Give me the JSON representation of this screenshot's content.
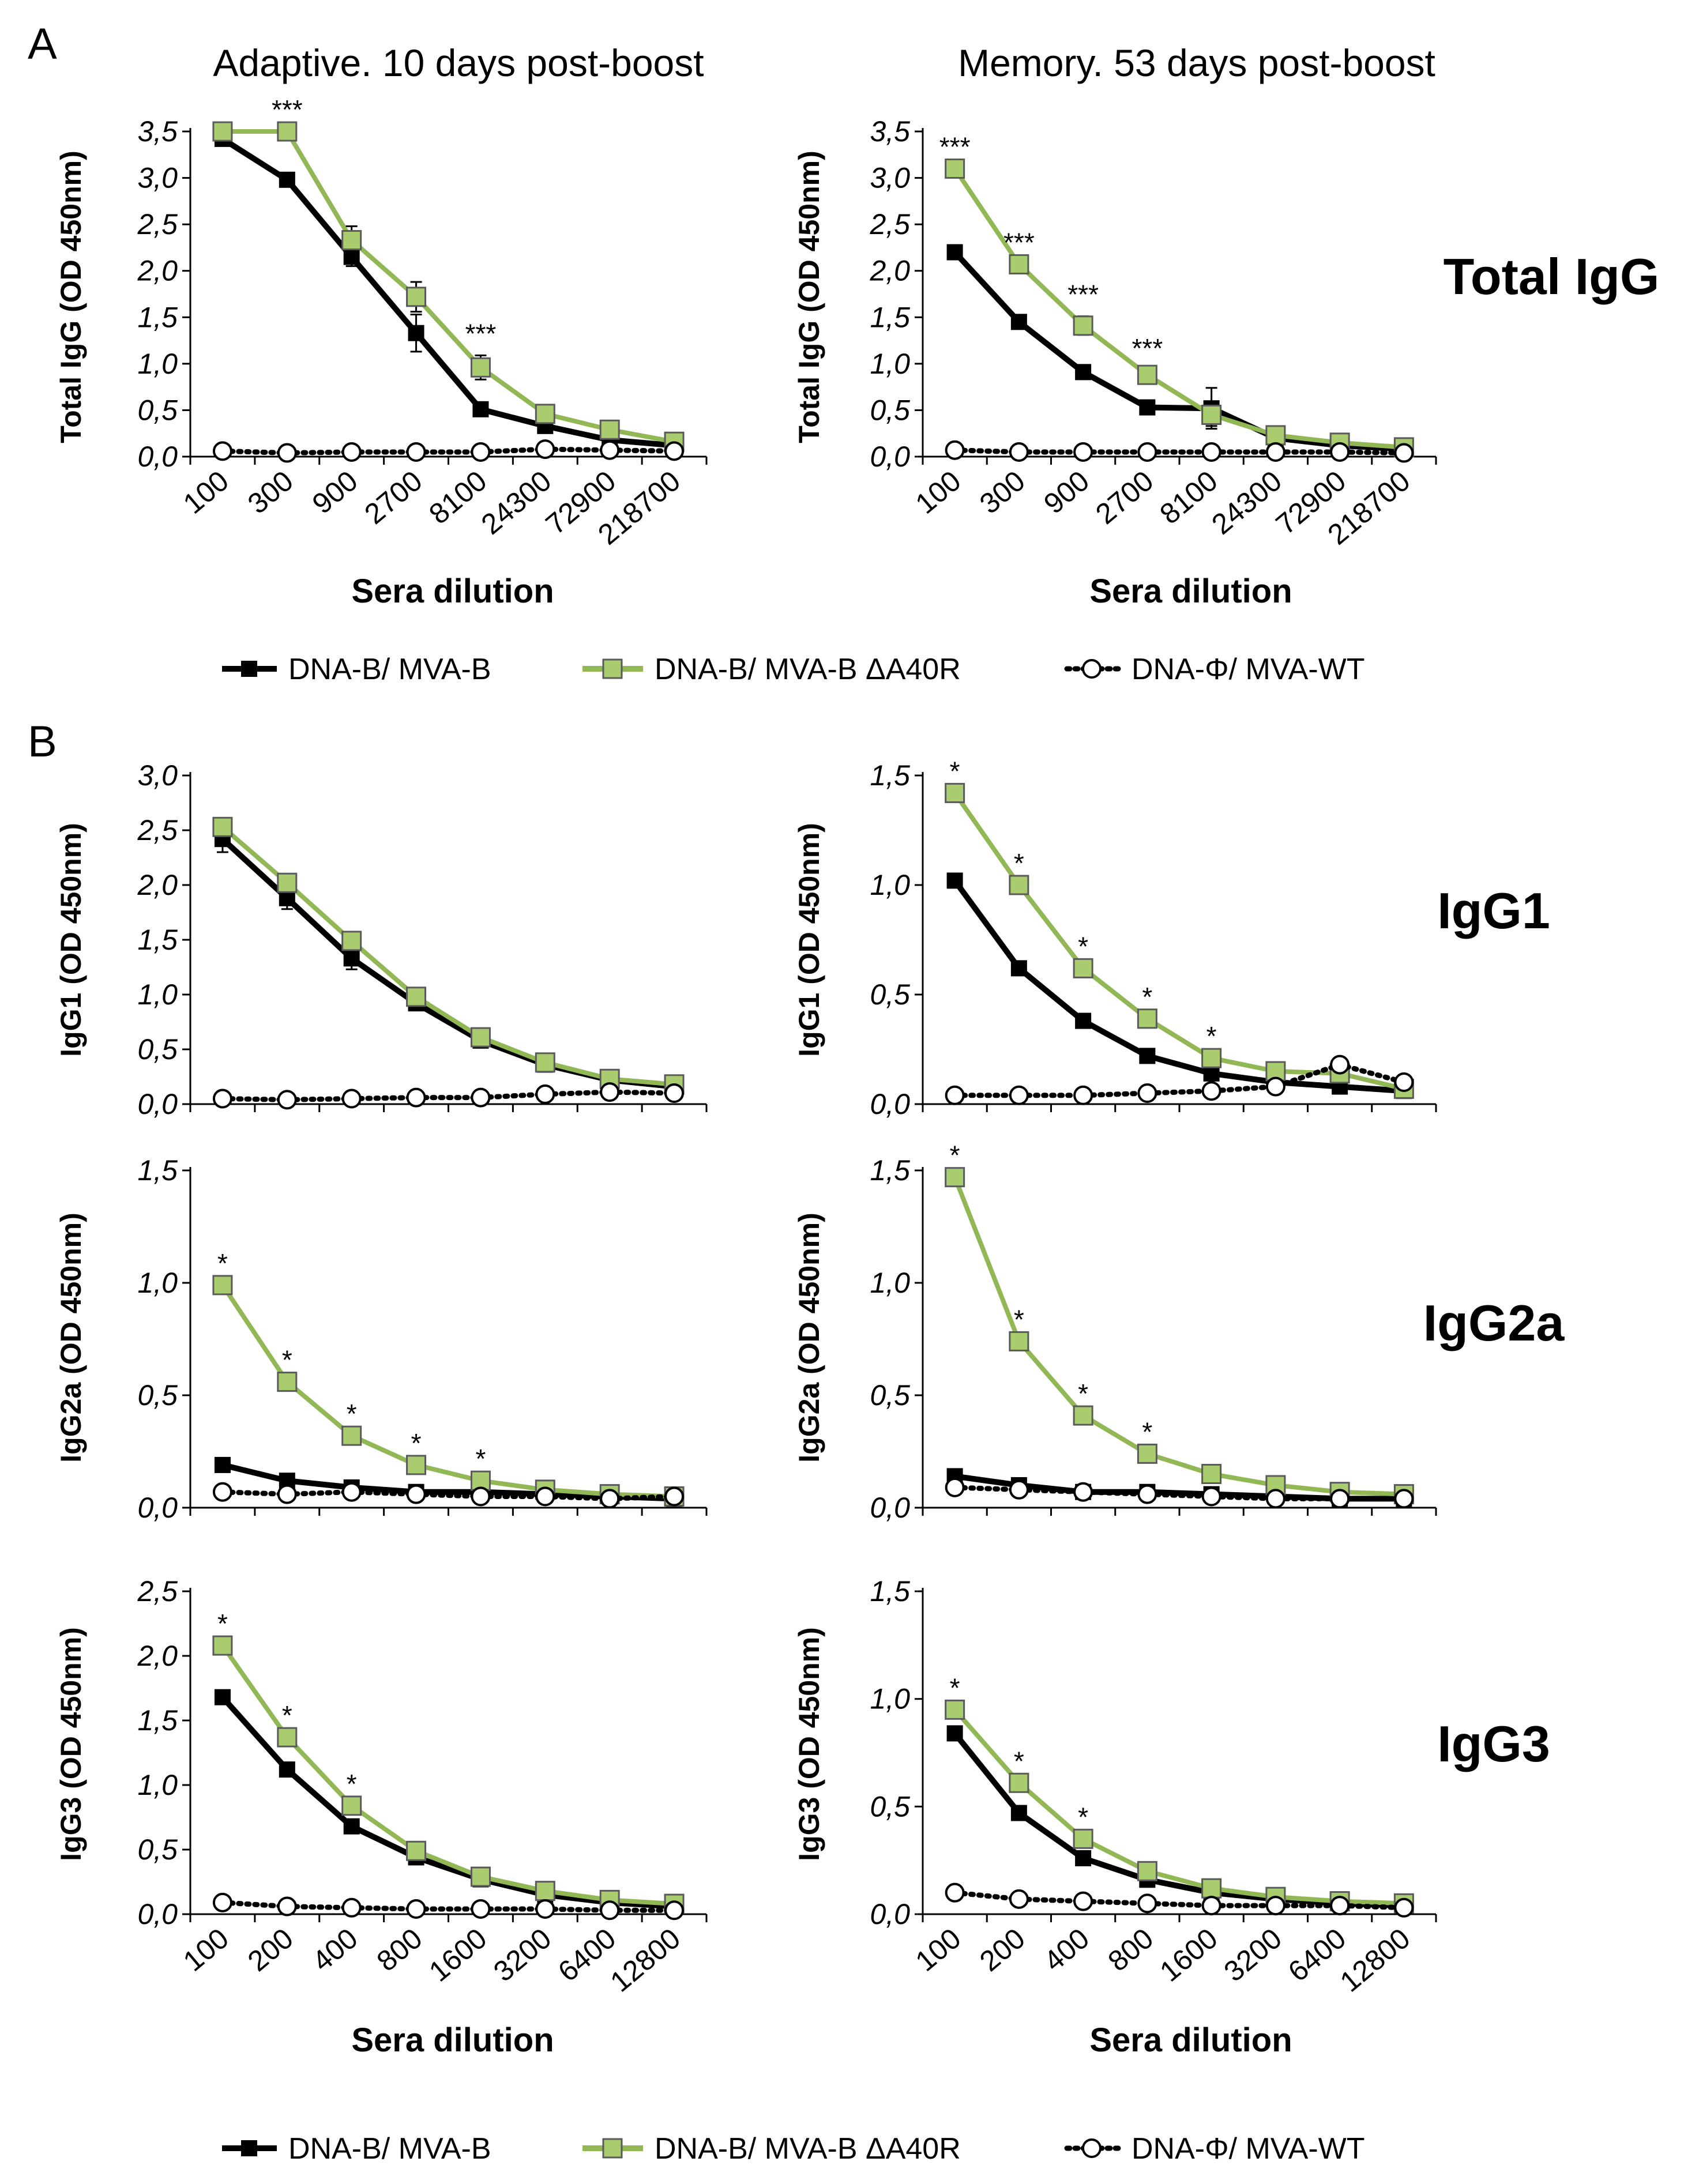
{
  "panel_labels": {
    "a": "A",
    "b": "B"
  },
  "titles": {
    "adaptive": "Adaptive. 10 days post-boost",
    "memory": "Memory. 53 days post-boost"
  },
  "row_labels": {
    "total": "Total IgG",
    "igg1": "IgG1",
    "igg2a": "IgG2a",
    "igg3": "IgG3"
  },
  "axis_titles": {
    "total": "Total IgG (OD 450nm)",
    "igg1": "IgG1 (OD 450nm)",
    "igg2a": "IgG2a (OD 450nm)",
    "igg3": "IgG3 (OD 450nm)",
    "x": "Sera dilution"
  },
  "legend": {
    "mva_b": "DNA-B/ MVA-B",
    "delta": "DNA-B/ MVA-B ΔA40R",
    "wt": "DNA-Φ/ MVA-WT"
  },
  "colors": {
    "mva_b": "#000000",
    "delta": "#92b755",
    "delta_fill": "#a9cd6e",
    "wt": "#000000"
  },
  "chart_data": [
    {
      "id": "totalA",
      "type": "line",
      "row": "total",
      "categories": [
        "100",
        "300",
        "900",
        "2700",
        "8100",
        "24300",
        "72900",
        "218700"
      ],
      "ylim": [
        0,
        3.5
      ],
      "yticks": [
        "0,0",
        "0,5",
        "1,0",
        "1,5",
        "2,0",
        "2,5",
        "3,0",
        "3,5"
      ],
      "series": [
        {
          "name": "DNA-B/ MVA-B",
          "values": [
            3.42,
            2.98,
            2.15,
            1.33,
            0.51,
            0.33,
            0.18,
            0.12
          ],
          "errors": [
            0.03,
            0.03,
            0.1,
            0.2,
            0.03,
            0.03,
            0.02,
            0.02
          ]
        },
        {
          "name": "DNA-B/ MVA-B ΔA40R",
          "values": [
            3.5,
            3.5,
            2.33,
            1.72,
            0.96,
            0.46,
            0.29,
            0.16
          ],
          "errors": [
            0,
            0,
            0.15,
            0.16,
            0.13,
            0.03,
            0.03,
            0.02
          ]
        },
        {
          "name": "DNA-Φ/ MVA-WT",
          "values": [
            0.06,
            0.04,
            0.05,
            0.05,
            0.05,
            0.08,
            0.07,
            0.06
          ],
          "errors": [
            0,
            0,
            0,
            0,
            0,
            0,
            0,
            0
          ]
        }
      ],
      "annotations": [
        {
          "index": 1,
          "label": "***"
        },
        {
          "index": 4,
          "label": "***"
        }
      ]
    },
    {
      "id": "totalM",
      "type": "line",
      "row": "total",
      "categories": [
        "100",
        "300",
        "900",
        "2700",
        "8100",
        "24300",
        "72900",
        "218700"
      ],
      "ylim": [
        0,
        3.5
      ],
      "yticks": [
        "0,0",
        "0,5",
        "1,0",
        "1,5",
        "2,0",
        "2,5",
        "3,0",
        "3,5"
      ],
      "series": [
        {
          "name": "DNA-B/ MVA-B",
          "values": [
            2.2,
            1.45,
            0.91,
            0.53,
            0.52,
            0.2,
            0.12,
            0.08
          ],
          "errors": [
            0.03,
            0.03,
            0.03,
            0.03,
            0.22,
            0.02,
            0.02,
            0.02
          ]
        },
        {
          "name": "DNA-B/ MVA-B ΔA40R",
          "values": [
            3.1,
            2.07,
            1.41,
            0.88,
            0.45,
            0.23,
            0.15,
            0.1
          ],
          "errors": [
            0.03,
            0.03,
            0.1,
            0.05,
            0.12,
            0.03,
            0.03,
            0.02
          ]
        },
        {
          "name": "DNA-Φ/ MVA-WT",
          "values": [
            0.07,
            0.05,
            0.05,
            0.05,
            0.05,
            0.05,
            0.05,
            0.04
          ],
          "errors": [
            0,
            0,
            0,
            0,
            0,
            0,
            0,
            0
          ]
        }
      ],
      "annotations": [
        {
          "index": 0,
          "label": "***"
        },
        {
          "index": 1,
          "label": "***"
        },
        {
          "index": 2,
          "label": "***"
        },
        {
          "index": 3,
          "label": "***"
        }
      ]
    },
    {
      "id": "igg1A",
      "type": "line",
      "row": "igg1",
      "categories": [
        "100",
        "200",
        "400",
        "800",
        "1600",
        "3200",
        "6400",
        "12800"
      ],
      "ylim": [
        0,
        3.0
      ],
      "yticks": [
        "0,0",
        "0,5",
        "1,0",
        "1,5",
        "2,0",
        "2,5",
        "3,0"
      ],
      "series": [
        {
          "name": "DNA-B/ MVA-B",
          "values": [
            2.42,
            1.88,
            1.33,
            0.92,
            0.58,
            0.36,
            0.22,
            0.16
          ],
          "errors": [
            0.12,
            0.1,
            0.1,
            0.03,
            0.03,
            0.02,
            0.02,
            0.02
          ]
        },
        {
          "name": "DNA-B/ MVA-B ΔA40R",
          "values": [
            2.53,
            2.02,
            1.49,
            0.98,
            0.61,
            0.38,
            0.23,
            0.18
          ],
          "errors": [
            0.05,
            0.04,
            0.04,
            0.03,
            0.02,
            0.02,
            0.02,
            0.02
          ]
        },
        {
          "name": "DNA-Φ/ MVA-WT",
          "values": [
            0.05,
            0.04,
            0.05,
            0.06,
            0.06,
            0.09,
            0.11,
            0.1
          ],
          "errors": [
            0,
            0,
            0,
            0,
            0,
            0,
            0,
            0
          ]
        }
      ],
      "annotations": []
    },
    {
      "id": "igg1M",
      "type": "line",
      "row": "igg1",
      "categories": [
        "100",
        "200",
        "400",
        "800",
        "1600",
        "3200",
        "6400",
        "12800"
      ],
      "ylim": [
        0,
        1.5
      ],
      "yticks": [
        "0,0",
        "0,5",
        "1,0",
        "1,5"
      ],
      "series": [
        {
          "name": "DNA-B/ MVA-B",
          "values": [
            1.02,
            0.62,
            0.38,
            0.22,
            0.14,
            0.1,
            0.08,
            0.06
          ],
          "errors": [
            0.02,
            0.02,
            0.02,
            0.02,
            0.02,
            0.01,
            0.01,
            0.01
          ]
        },
        {
          "name": "DNA-B/ MVA-B ΔA40R",
          "values": [
            1.42,
            1.0,
            0.62,
            0.39,
            0.21,
            0.15,
            0.14,
            0.07
          ],
          "errors": [
            0.02,
            0.02,
            0.02,
            0.02,
            0.02,
            0.01,
            0.01,
            0.01
          ]
        },
        {
          "name": "DNA-Φ/ MVA-WT",
          "values": [
            0.04,
            0.04,
            0.04,
            0.05,
            0.06,
            0.08,
            0.18,
            0.1
          ],
          "errors": [
            0,
            0,
            0,
            0,
            0,
            0,
            0,
            0
          ]
        }
      ],
      "annotations": [
        {
          "index": 0,
          "label": "*"
        },
        {
          "index": 1,
          "label": "*"
        },
        {
          "index": 2,
          "label": "*"
        },
        {
          "index": 3,
          "label": "*"
        },
        {
          "index": 4,
          "label": "*"
        }
      ]
    },
    {
      "id": "igg2aA",
      "type": "line",
      "row": "igg2a",
      "categories": [
        "100",
        "200",
        "400",
        "800",
        "1600",
        "3200",
        "6400",
        "12800"
      ],
      "ylim": [
        0,
        1.5
      ],
      "yticks": [
        "0,0",
        "0,5",
        "1,0",
        "1,5"
      ],
      "series": [
        {
          "name": "DNA-B/ MVA-B",
          "values": [
            0.19,
            0.12,
            0.09,
            0.07,
            0.07,
            0.06,
            0.05,
            0.04
          ],
          "errors": [
            0.01,
            0.01,
            0.01,
            0.01,
            0.01,
            0.01,
            0.01,
            0.01
          ]
        },
        {
          "name": "DNA-B/ MVA-B ΔA40R",
          "values": [
            0.99,
            0.56,
            0.32,
            0.19,
            0.12,
            0.08,
            0.06,
            0.05
          ],
          "errors": [
            0.02,
            0.02,
            0.02,
            0.02,
            0.01,
            0.01,
            0.01,
            0.01
          ]
        },
        {
          "name": "DNA-Φ/ MVA-WT",
          "values": [
            0.07,
            0.06,
            0.07,
            0.06,
            0.05,
            0.05,
            0.04,
            0.05
          ],
          "errors": [
            0,
            0,
            0,
            0,
            0,
            0,
            0,
            0
          ]
        }
      ],
      "annotations": [
        {
          "index": 0,
          "label": "*"
        },
        {
          "index": 1,
          "label": "*"
        },
        {
          "index": 2,
          "label": "*"
        },
        {
          "index": 3,
          "label": "*"
        },
        {
          "index": 4,
          "label": "*"
        }
      ]
    },
    {
      "id": "igg2aM",
      "type": "line",
      "row": "igg2a",
      "categories": [
        "100",
        "200",
        "400",
        "800",
        "1600",
        "3200",
        "6400",
        "12800"
      ],
      "ylim": [
        0,
        1.5
      ],
      "yticks": [
        "0,0",
        "0,5",
        "1,0",
        "1,5"
      ],
      "series": [
        {
          "name": "DNA-B/ MVA-B",
          "values": [
            0.14,
            0.1,
            0.07,
            0.07,
            0.06,
            0.05,
            0.04,
            0.04
          ],
          "errors": [
            0.01,
            0.01,
            0.01,
            0.01,
            0.01,
            0.01,
            0.01,
            0.01
          ]
        },
        {
          "name": "DNA-B/ MVA-B ΔA40R",
          "values": [
            1.47,
            0.74,
            0.41,
            0.24,
            0.15,
            0.1,
            0.07,
            0.06
          ],
          "errors": [
            0.02,
            0.02,
            0.02,
            0.02,
            0.01,
            0.01,
            0.01,
            0.01
          ]
        },
        {
          "name": "DNA-Φ/ MVA-WT",
          "values": [
            0.09,
            0.08,
            0.07,
            0.06,
            0.05,
            0.04,
            0.04,
            0.04
          ],
          "errors": [
            0,
            0,
            0,
            0,
            0,
            0,
            0,
            0
          ]
        }
      ],
      "annotations": [
        {
          "index": 0,
          "label": "*"
        },
        {
          "index": 1,
          "label": "*"
        },
        {
          "index": 2,
          "label": "*"
        },
        {
          "index": 3,
          "label": "*"
        }
      ]
    },
    {
      "id": "igg3A",
      "type": "line",
      "row": "igg3",
      "categories": [
        "100",
        "200",
        "400",
        "800",
        "1600",
        "3200",
        "6400",
        "12800"
      ],
      "ylim": [
        0,
        2.5
      ],
      "yticks": [
        "0,0",
        "0,5",
        "1,0",
        "1,5",
        "2,0",
        "2,5"
      ],
      "series": [
        {
          "name": "DNA-B/ MVA-B",
          "values": [
            1.68,
            1.12,
            0.68,
            0.44,
            0.27,
            0.15,
            0.09,
            0.06
          ],
          "errors": [
            0.02,
            0.02,
            0.02,
            0.02,
            0.02,
            0.01,
            0.01,
            0.01
          ]
        },
        {
          "name": "DNA-B/ MVA-B ΔA40R",
          "values": [
            2.08,
            1.37,
            0.84,
            0.49,
            0.29,
            0.18,
            0.11,
            0.08
          ],
          "errors": [
            0.02,
            0.02,
            0.02,
            0.02,
            0.02,
            0.01,
            0.01,
            0.01
          ]
        },
        {
          "name": "DNA-Φ/ MVA-WT",
          "values": [
            0.09,
            0.06,
            0.05,
            0.04,
            0.04,
            0.04,
            0.03,
            0.03
          ],
          "errors": [
            0,
            0,
            0,
            0,
            0,
            0,
            0,
            0
          ]
        }
      ],
      "annotations": [
        {
          "index": 0,
          "label": "*"
        },
        {
          "index": 1,
          "label": "*"
        },
        {
          "index": 2,
          "label": "*"
        }
      ]
    },
    {
      "id": "igg3M",
      "type": "line",
      "row": "igg3",
      "categories": [
        "100",
        "200",
        "400",
        "800",
        "1600",
        "3200",
        "6400",
        "12800"
      ],
      "ylim": [
        0,
        1.5
      ],
      "yticks": [
        "0,0",
        "0,5",
        "1,0",
        "1,5"
      ],
      "series": [
        {
          "name": "DNA-B/ MVA-B",
          "values": [
            0.84,
            0.47,
            0.26,
            0.16,
            0.1,
            0.07,
            0.05,
            0.04
          ],
          "errors": [
            0.02,
            0.02,
            0.02,
            0.02,
            0.01,
            0.01,
            0.01,
            0.01
          ]
        },
        {
          "name": "DNA-B/ MVA-B ΔA40R",
          "values": [
            0.95,
            0.61,
            0.35,
            0.2,
            0.12,
            0.08,
            0.06,
            0.05
          ],
          "errors": [
            0.02,
            0.02,
            0.02,
            0.02,
            0.01,
            0.01,
            0.01,
            0.01
          ]
        },
        {
          "name": "DNA-Φ/ MVA-WT",
          "values": [
            0.1,
            0.07,
            0.06,
            0.05,
            0.04,
            0.04,
            0.04,
            0.03
          ],
          "errors": [
            0,
            0,
            0,
            0,
            0,
            0,
            0,
            0
          ]
        }
      ],
      "annotations": [
        {
          "index": 0,
          "label": "*"
        },
        {
          "index": 1,
          "label": "*"
        },
        {
          "index": 2,
          "label": "*"
        }
      ]
    }
  ]
}
